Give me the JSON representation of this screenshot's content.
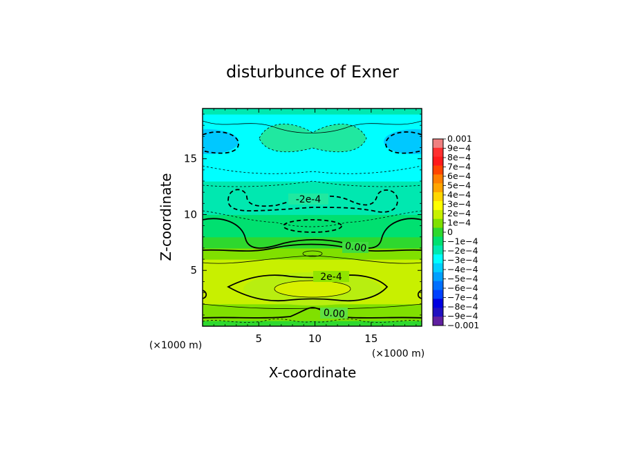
{
  "chart_data": {
    "type": "heatmap",
    "title": "disturbunce of Exner",
    "xlabel": "X-coordinate",
    "ylabel": "Z-coordinate",
    "x_unit": "(×1000 m)",
    "y_unit": "(×1000 m)",
    "xlim": [
      0,
      19.5
    ],
    "ylim": [
      0,
      19.5
    ],
    "x_ticks": [
      5,
      10,
      15
    ],
    "x_tick_labels": [
      "5",
      "10",
      "15"
    ],
    "y_ticks": [
      5,
      10,
      15
    ],
    "y_tick_labels": [
      "5",
      "10",
      "15"
    ],
    "grid": false,
    "legend": "colorbar-right",
    "colorbar": {
      "min": -0.001,
      "max": 0.001,
      "tick_labels": [
        "0.001",
        "9e-4",
        "8e-4",
        "7e-4",
        "6e-4",
        "5e-4",
        "4e-4",
        "3e-4",
        "2e-4",
        "1e-4",
        "0",
        "-1e-4",
        "-2e-4",
        "-3e-4",
        "-4e-4",
        "-5e-4",
        "-6e-4",
        "-7e-4",
        "-8e-4",
        "-9e-4",
        "-0.001"
      ],
      "colors": [
        "#f08080",
        "#ff3030",
        "#ff1a1a",
        "#ff4500",
        "#ff7f00",
        "#ffa500",
        "#ffd700",
        "#ffff00",
        "#c8f000",
        "#80e000",
        "#2ed82e",
        "#00e070",
        "#00e8b0",
        "#00ffff",
        "#00d0ff",
        "#00a0ff",
        "#0070ff",
        "#0040ff",
        "#0000e0",
        "#2010c0",
        "#6020a0"
      ]
    },
    "z_profile": {
      "z": [
        0,
        0.5,
        1,
        2,
        3,
        4,
        5,
        6,
        7,
        8,
        9,
        10,
        11,
        12,
        13,
        14,
        15,
        16,
        17,
        18,
        19,
        19.5
      ],
      "values": [
        4e-05,
        3e-05,
        7e-05,
        0.00015,
        0.0002,
        0.00024,
        0.00019,
        0.00012,
        4e-05,
        -3e-05,
        -7e-05,
        -0.00012,
        -0.00018,
        -0.00022,
        -0.00025,
        -0.00028,
        -0.0003,
        -0.00031,
        -0.00035,
        -0.00028,
        -0.0002,
        -0.00015
      ]
    },
    "contours": [
      {
        "level": 0,
        "label": "0.00",
        "style": "solid"
      },
      {
        "level": 0.0002,
        "label": "2e-4",
        "style": "solid"
      },
      {
        "level": -0.0002,
        "label": "-2e-4",
        "style": "dashed"
      }
    ]
  }
}
